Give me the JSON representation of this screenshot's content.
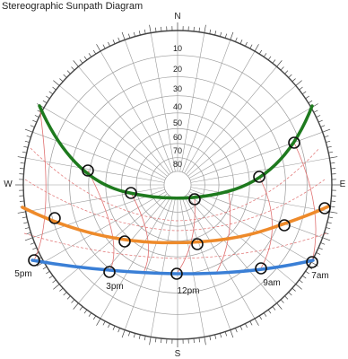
{
  "title": "Stereographic Sunpath Diagram",
  "compass": {
    "north": "N",
    "east": "E",
    "south": "S",
    "west": "W"
  },
  "altitude_labels": [
    "10",
    "20",
    "30",
    "40",
    "50",
    "60",
    "70",
    "80"
  ],
  "hour_labels": [
    "5pm",
    "3pm",
    "12pm",
    "9am",
    "7am"
  ],
  "colors": {
    "summer_path": "#1e7a1e",
    "equinox_path": "#ee8a2a",
    "winter_path": "#3a7fd6",
    "hour_lines": "#e07070",
    "grid": "#9a9a9a",
    "markers": "#111111"
  }
}
